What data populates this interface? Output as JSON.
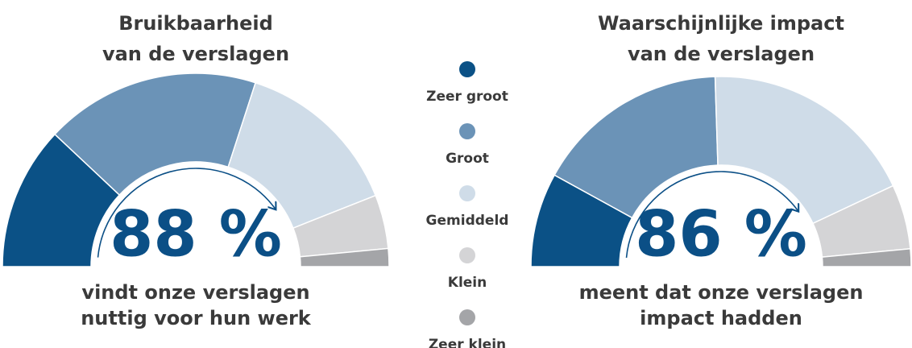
{
  "chart_data": [
    {
      "type": "gauge",
      "title": [
        "Bruikbaarheid",
        "van de verslagen"
      ],
      "headline": "88 %",
      "caption": [
        "vindt onze verslagen",
        "nuttig voor hun werk"
      ],
      "values": [
        24,
        36,
        28,
        9,
        3
      ]
    },
    {
      "type": "gauge",
      "title": [
        "Waarschijnlijke impact",
        "van de verslagen"
      ],
      "headline": "86 %",
      "caption": [
        "meent dat onze verslagen",
        "impact hadden"
      ],
      "values": [
        16,
        33,
        37,
        11,
        3
      ]
    }
  ],
  "legend": {
    "categories": [
      "Zeer groot",
      "Groot",
      "Gemiddeld",
      "Klein",
      "Zeer klein"
    ],
    "colors": [
      "#0b5186",
      "#6b93b7",
      "#cfdce8",
      "#d4d4d6",
      "#a4a5a8"
    ]
  }
}
